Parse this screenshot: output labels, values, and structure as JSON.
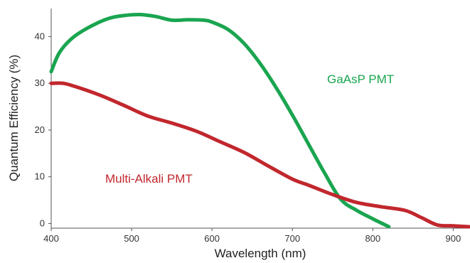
{
  "chart_data": {
    "type": "line",
    "title": "",
    "xlabel": "Wavelength (nm)",
    "ylabel": "Quantum Efficiency (%)",
    "xlim": [
      400,
      920
    ],
    "ylim": [
      -1,
      46
    ],
    "xticks": [
      400,
      500,
      600,
      700,
      800,
      900
    ],
    "yticks": [
      0,
      10,
      20,
      30,
      40
    ],
    "grid": false,
    "legend": "none",
    "series": [
      {
        "name": "GaAsP PMT",
        "color": "#1aa550",
        "x": [
          400,
          410,
          425,
          445,
          470,
          490,
          510,
          530,
          550,
          570,
          590,
          600,
          620,
          640,
          660,
          680,
          700,
          720,
          740,
          760,
          780,
          800,
          820
        ],
        "y": [
          32.5,
          36.5,
          39.5,
          41.8,
          43.8,
          44.5,
          44.7,
          44.3,
          43.5,
          43.6,
          43.5,
          43.1,
          41.5,
          38.5,
          34.2,
          29.0,
          23.2,
          17.0,
          10.8,
          5.2,
          2.8,
          1.0,
          -0.7
        ]
      },
      {
        "name": "Multi-Alkali PMT",
        "color": "#c1272d",
        "x": [
          400,
          415,
          430,
          460,
          490,
          520,
          550,
          580,
          610,
          640,
          670,
          700,
          720,
          750,
          780,
          810,
          840,
          860,
          880,
          900,
          920
        ],
        "y": [
          30.0,
          30.0,
          29.3,
          27.5,
          25.3,
          23.0,
          21.5,
          19.8,
          17.5,
          15.2,
          12.3,
          9.5,
          8.2,
          6.2,
          4.5,
          3.6,
          2.8,
          1.3,
          -0.3,
          -0.5,
          -0.7
        ]
      }
    ]
  }
}
